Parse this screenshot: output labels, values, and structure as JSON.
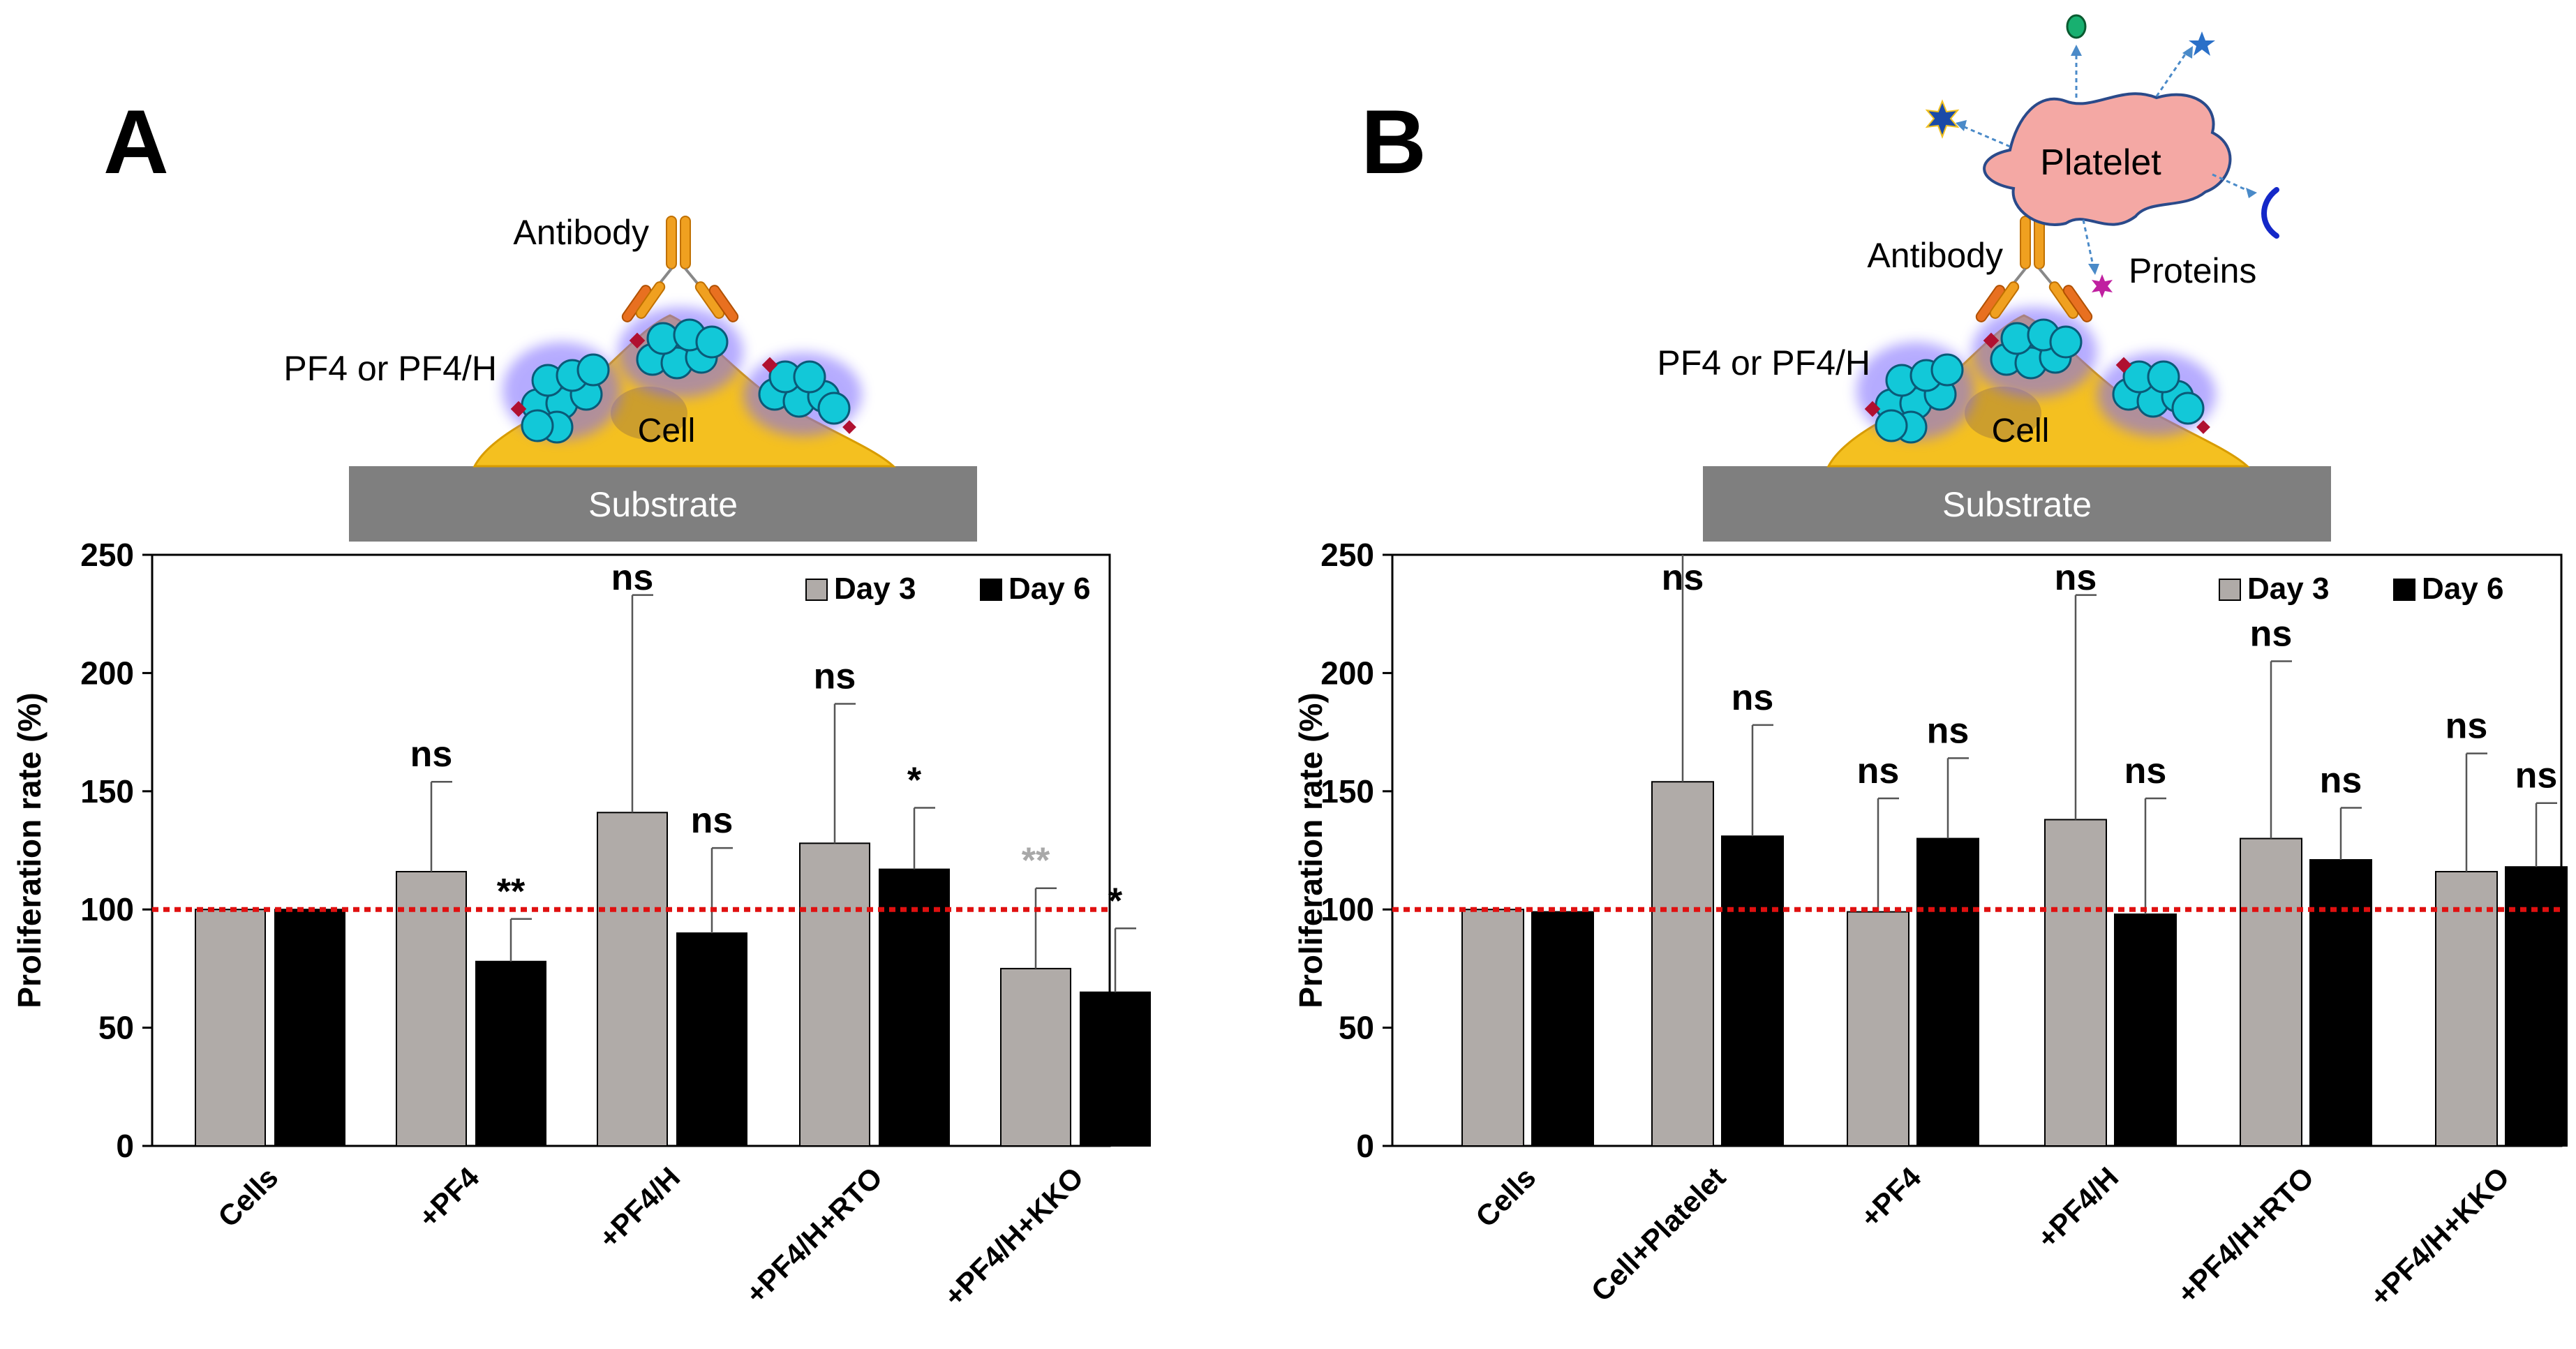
{
  "panels": [
    {
      "letter": "A",
      "schematic": {
        "antibody": "Antibody",
        "pf4": "PF4 or PF4/H",
        "cell": "Cell",
        "substrate": "Substrate"
      }
    },
    {
      "letter": "B",
      "schematic": {
        "antibody": "Antibody",
        "pf4": "PF4 or PF4/H",
        "cell": "Cell",
        "substrate": "Substrate",
        "platelet": "Platelet",
        "proteins": "Proteins"
      }
    }
  ],
  "colors": {
    "day3": "#b0aba8",
    "day6": "#000000",
    "reference": "#e01010",
    "sig_grey": "#a8a8a8",
    "substrate": "#7f7f7f",
    "cell": "#f4c020",
    "platelet": "#f4a8a4",
    "pf4": "#12c8d8"
  },
  "chart_data": [
    {
      "type": "bar",
      "title": "",
      "xlabel": "",
      "ylabel": "Proliferation rate (%)",
      "ylim": [
        0,
        250
      ],
      "yticks": [
        "0",
        "50",
        "100",
        "150",
        "200",
        "250"
      ],
      "reference_line": 100,
      "legend": [
        "Day 3",
        "Day 6"
      ],
      "legend_position": "top-right",
      "categories": [
        "Cells",
        "+PF4",
        "+PF4/H",
        "+PF4/H+RTO",
        "+PF4/H+KKO"
      ],
      "series": [
        {
          "name": "Day 3",
          "values": [
            100,
            116,
            141,
            128,
            75
          ],
          "errors": [
            0,
            38,
            92,
            59,
            34
          ],
          "annotations": [
            "",
            "ns",
            "ns",
            "ns",
            "**"
          ]
        },
        {
          "name": "Day 6",
          "values": [
            100,
            78,
            90,
            117,
            65
          ],
          "errors": [
            0,
            18,
            36,
            26,
            27
          ],
          "annotations": [
            "",
            "**",
            "ns",
            "*",
            "*"
          ]
        }
      ]
    },
    {
      "type": "bar",
      "title": "",
      "xlabel": "",
      "ylabel": "Proliferation rate (%)",
      "ylim": [
        0,
        250
      ],
      "yticks": [
        "0",
        "50",
        "100",
        "150",
        "200",
        "250"
      ],
      "reference_line": 100,
      "legend": [
        "Day 3",
        "Day 6"
      ],
      "legend_position": "top-right",
      "categories": [
        "Cells",
        "Cell+Platelet",
        "+PF4",
        "+PF4/H",
        "+PF4/H+RTO",
        "+PF4/H+KKO"
      ],
      "series": [
        {
          "name": "Day 3",
          "values": [
            100,
            154,
            99,
            138,
            130,
            116
          ],
          "errors": [
            0,
            100,
            48,
            95,
            75,
            50
          ],
          "annotations": [
            "",
            "ns",
            "ns",
            "ns",
            "ns",
            "ns"
          ]
        },
        {
          "name": "Day 6",
          "values": [
            99,
            131,
            130,
            98,
            121,
            118
          ],
          "errors": [
            0,
            47,
            34,
            49,
            22,
            27
          ],
          "annotations": [
            "",
            "ns",
            "ns",
            "ns",
            "ns",
            "ns"
          ]
        }
      ]
    }
  ]
}
